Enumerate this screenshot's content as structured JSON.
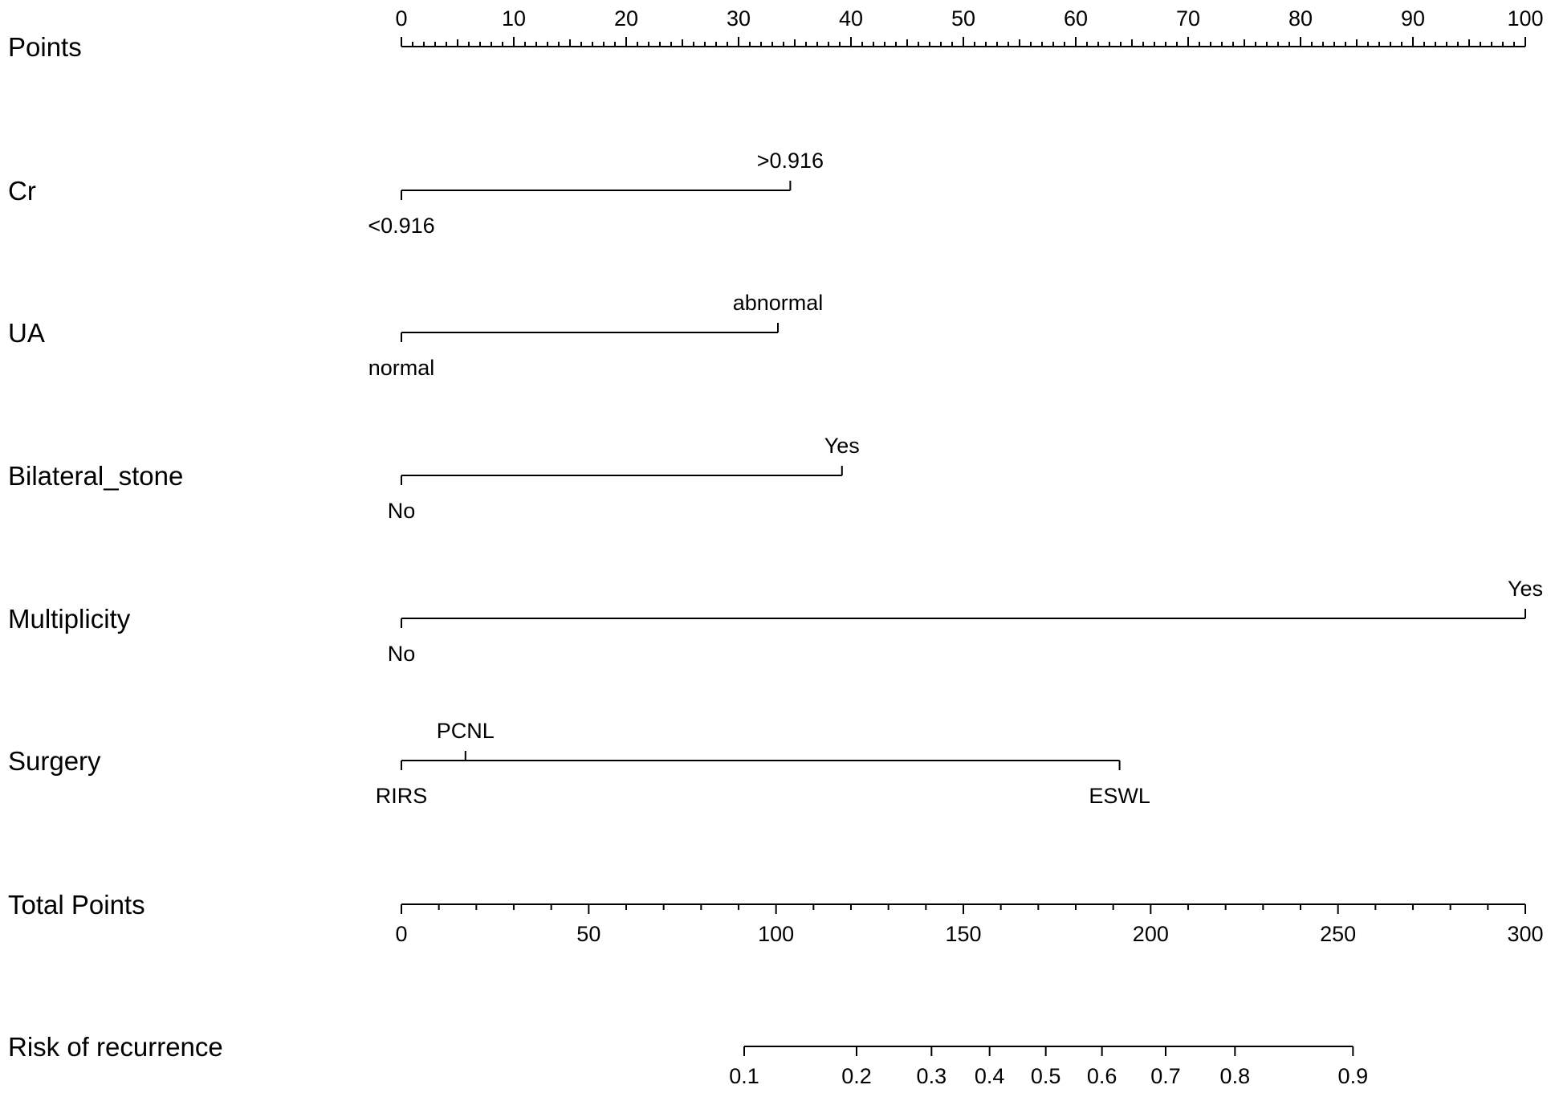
{
  "chart_data": {
    "type": "nomogram",
    "points_scale": {
      "label": "Points",
      "range": [
        0,
        100
      ],
      "ticks": [
        "0",
        "10",
        "20",
        "30",
        "40",
        "50",
        "60",
        "70",
        "80",
        "90",
        "100"
      ]
    },
    "predictors": [
      {
        "name": "Cr",
        "levels": [
          {
            "label": "<0.916",
            "points": 0
          },
          {
            "label": ">0.916",
            "points": 34.6
          }
        ]
      },
      {
        "name": "UA",
        "levels": [
          {
            "label": "normal",
            "points": 0
          },
          {
            "label": "abnormal",
            "points": 33.5
          }
        ]
      },
      {
        "name": "Bilateral_stone",
        "levels": [
          {
            "label": "No",
            "points": 0
          },
          {
            "label": "Yes",
            "points": 39.2
          }
        ]
      },
      {
        "name": "Multiplicity",
        "levels": [
          {
            "label": "No",
            "points": 0
          },
          {
            "label": "Yes",
            "points": 100
          }
        ]
      },
      {
        "name": "Surgery",
        "levels": [
          {
            "label": "RIRS",
            "points": 0
          },
          {
            "label": "PCNL",
            "points": 5.7
          },
          {
            "label": "ESWL",
            "points": 63.9
          }
        ]
      }
    ],
    "total_points_scale": {
      "label": "Total Points",
      "range": [
        0,
        300
      ],
      "ticks": [
        "0",
        "50",
        "100",
        "150",
        "200",
        "250",
        "300"
      ]
    },
    "risk_scale": {
      "label": "Risk of recurrence",
      "ticks": [
        {
          "label": "0.1",
          "total_points": 91.5
        },
        {
          "label": "0.2",
          "total_points": 121.5
        },
        {
          "label": "0.3",
          "total_points": 141.5
        },
        {
          "label": "0.4",
          "total_points": 157.0
        },
        {
          "label": "0.5",
          "total_points": 172.0
        },
        {
          "label": "0.6",
          "total_points": 187.0
        },
        {
          "label": "0.7",
          "total_points": 204.0
        },
        {
          "label": "0.8",
          "total_points": 222.5
        },
        {
          "label": "0.9",
          "total_points": 254.0
        }
      ]
    }
  }
}
